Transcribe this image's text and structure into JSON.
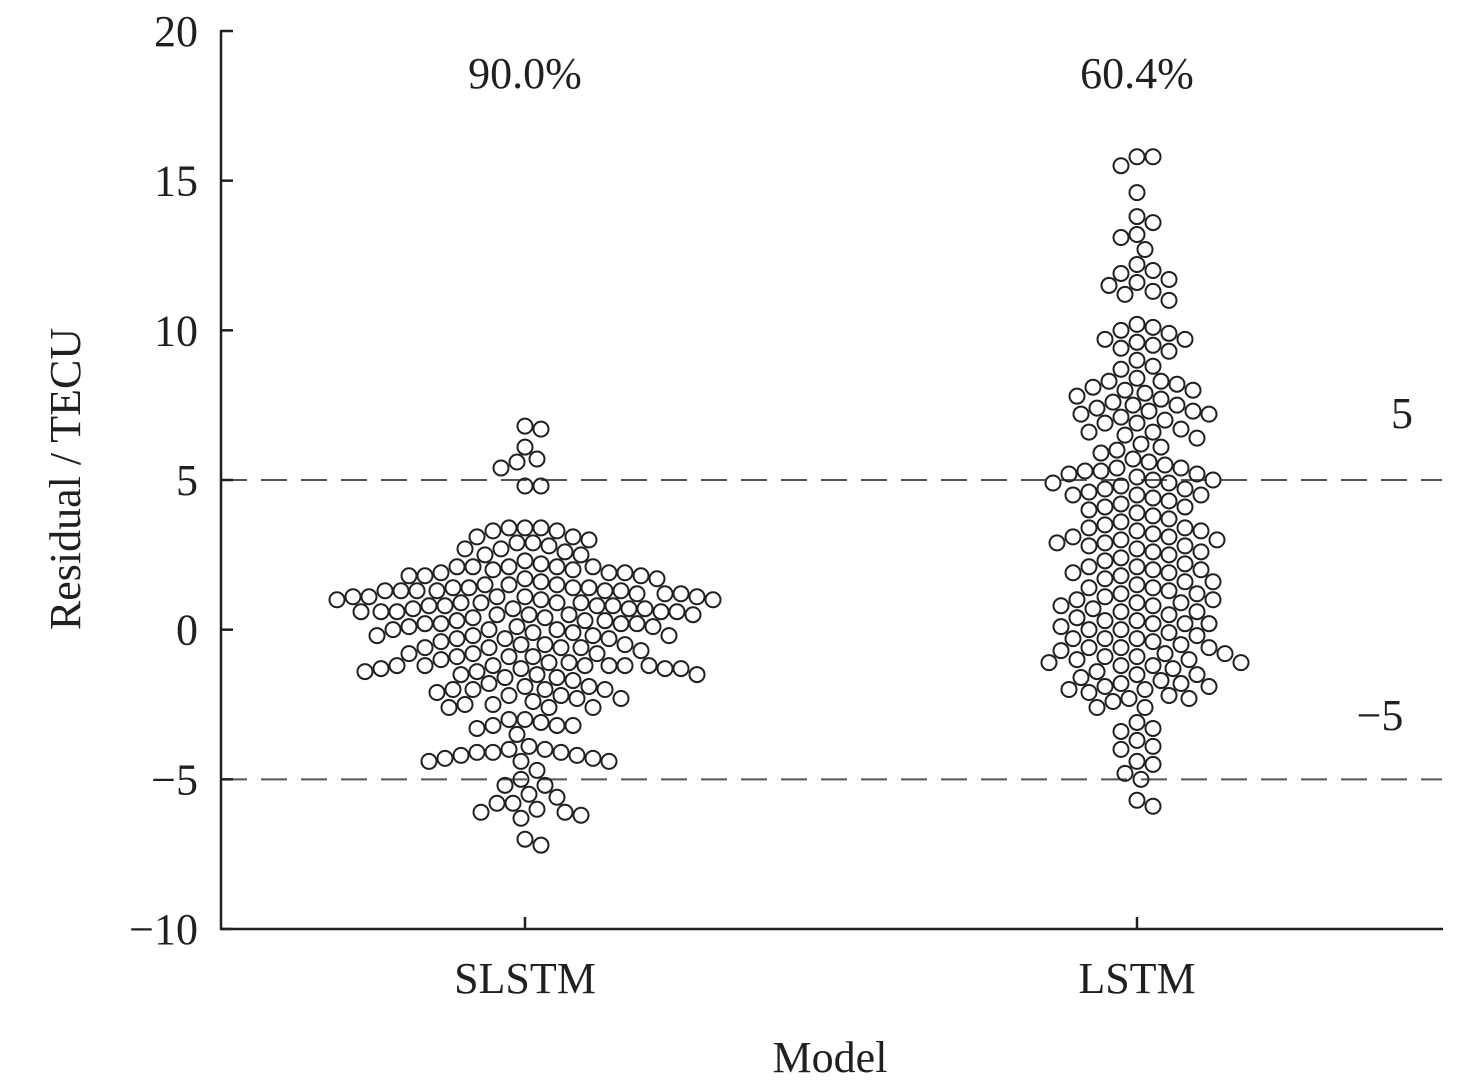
{
  "chart_data": {
    "type": "scatter",
    "subtype": "beeswarm",
    "xlabel": "Model",
    "ylabel": "Residual / TECU",
    "ylim": [
      -10,
      20
    ],
    "yticks": [
      20,
      15,
      10,
      5,
      0,
      -5,
      -10
    ],
    "ytick_labels": [
      "20",
      "15",
      "10",
      "5",
      "0",
      "−5",
      "−10"
    ],
    "categories": [
      "SLSTM",
      "LSTM"
    ],
    "reference_lines": [
      5,
      -5
    ],
    "reference_labels": [
      "5",
      "−5"
    ],
    "annotations": [
      "90.0%",
      "60.4%"
    ],
    "colors": {
      "marker": "#231f20",
      "dash": "#555555",
      "axis": "#231f20"
    },
    "series": [
      {
        "name": "SLSTM",
        "annotation": "90.0%",
        "values": [
          0.1,
          0.2,
          1.0,
          1.1,
          1.3,
          1.5,
          1.7,
          -0.3,
          -0.6,
          0.7,
          0.0,
          0.6,
          -1.1,
          0.6,
          -0.1,
          1.3,
          2.1,
          1.3,
          0.9,
          1.7,
          1.4,
          -1.2,
          -1.4,
          -2.1,
          -2.5,
          0.3,
          2.0,
          2.1,
          1.9,
          0.7,
          0.6,
          -0.1,
          0.4,
          -1.0,
          -1.2,
          1.4,
          0.9,
          0.8,
          -0.6,
          -1.5,
          -1.7,
          -2.6,
          -3.0,
          -3.1,
          2.7,
          3.1,
          0.2,
          0.1,
          -0.9,
          -0.7,
          -1.2,
          -1.8,
          -1.3,
          -4.3,
          -4.4,
          -4.7,
          1.1,
          1.2,
          0.6,
          0.9,
          2.1,
          2.9,
          -1.3,
          -1.6,
          -1.9,
          -2.3,
          1.4,
          1.3,
          0.8,
          0.5,
          -0.2,
          -1.4,
          -1.6,
          -2.2,
          3.4,
          3.0,
          2.6,
          1.8,
          -0.2,
          -2.6,
          -2.6,
          -4.1,
          -5.5,
          -5.8,
          -6.2,
          -6.0,
          2.1,
          1.0,
          0.8,
          0.7,
          -3.5,
          2.9,
          3.4,
          6.1,
          6.7,
          5.7,
          4.8,
          0.2,
          -0.3,
          -0.5,
          -2.0,
          -2.3,
          -4.1,
          -4.2,
          -6.1,
          -6.3,
          -7.0,
          1.8,
          1.5,
          6.8,
          5.6,
          5.4,
          4.8,
          -0.8,
          -3.0,
          -4.3,
          -5.0,
          -5.2,
          -7.2,
          -5.8,
          0.0,
          0.4,
          0.7,
          3.4,
          2.1,
          -0.8,
          -1.3,
          -2.0,
          -4.2,
          -4.4,
          -6.1,
          0.5,
          0.9,
          3.3,
          3.1,
          2.5,
          1.3,
          0.5,
          -1.5,
          -2.4,
          -3.3,
          -3.2,
          -4.0,
          -4.1,
          -4.4,
          -5.2,
          -5.6,
          -1.9,
          -3.2,
          -3.2,
          -3.9,
          -4.0,
          3.3,
          1.9,
          1.6,
          0.3,
          -0.6,
          -0.9,
          -1.2,
          2.8,
          2.5,
          2.2,
          2.0,
          1.4,
          1.0,
          0.1,
          -0.5,
          -1.2,
          -2.0,
          0.8,
          2.7,
          0.5,
          -2.5,
          -2.2,
          -2.0,
          -0.2,
          -0.4,
          -0.3,
          -0.8,
          -1.1,
          -1.5,
          2.3,
          1.9,
          1.8,
          1.3,
          1.1,
          1.2,
          -0.6,
          -0.9,
          -1.3,
          -1.2,
          0.3,
          1.5,
          1.1,
          1.1,
          0.2,
          0.0,
          -0.2,
          -1.2,
          1.2,
          0.6,
          -0.5
        ]
      },
      {
        "name": "LSTM",
        "annotation": "60.4%",
        "values": [
          15.8,
          15.8,
          15.5,
          14.6,
          13.8,
          13.6,
          13.2,
          13.1,
          12.7,
          12.2,
          12.0,
          11.9,
          11.7,
          11.6,
          11.5,
          11.3,
          11.2,
          11.0,
          10.2,
          10.1,
          10.0,
          9.9,
          9.7,
          9.7,
          9.6,
          9.5,
          9.4,
          9.3,
          9.0,
          8.8,
          8.7,
          8.4,
          8.3,
          8.2,
          8.1,
          8.0,
          7.9,
          7.8,
          7.7,
          7.6,
          7.5,
          7.4,
          7.3,
          7.2,
          7.2,
          7.1,
          7.0,
          6.9,
          6.7,
          6.6,
          6.5,
          6.4,
          6.2,
          6.0,
          5.9,
          5.7,
          5.6,
          5.5,
          5.4,
          5.3,
          5.2,
          5.1,
          5.0,
          5.0,
          4.9,
          4.8,
          4.7,
          4.5,
          4.5,
          4.4,
          4.2,
          4.1,
          4.0,
          3.9,
          3.8,
          3.5,
          3.4,
          3.3,
          3.2,
          3.1,
          3.0,
          2.9,
          2.8,
          2.7,
          2.6,
          2.5,
          2.2,
          2.1,
          2.0,
          1.9,
          1.8,
          1.7,
          1.6,
          1.5,
          1.4,
          1.3,
          1.2,
          1.1,
          1.0,
          0.9,
          0.8,
          0.7,
          0.6,
          0.5,
          0.4,
          0.3,
          0.2,
          0.1,
          0.0,
          -0.1,
          -0.2,
          -0.3,
          -0.4,
          -0.5,
          -0.6,
          -0.7,
          -0.8,
          -0.9,
          -1.0,
          -1.1,
          -1.2,
          -1.3,
          -1.4,
          -1.5,
          -1.6,
          -1.7,
          -1.8,
          -1.9,
          -2.0,
          -2.1,
          -2.2,
          -2.3,
          -2.4,
          -2.6,
          -2.6,
          -3.1,
          -3.3,
          -3.4,
          -3.7,
          -3.9,
          -4.0,
          -4.4,
          -4.5,
          -4.8,
          -5.0,
          -5.7,
          -5.9,
          7.3,
          6.9,
          5.3,
          4.9,
          4.6,
          4.3,
          3.7,
          3.4,
          3.1,
          2.9,
          2.8,
          2.3,
          2.0,
          1.6,
          1.2,
          0.9,
          0.6,
          0.3,
          0.0,
          -0.3,
          -0.6,
          -0.9,
          -1.2,
          -1.5,
          -1.8,
          -2.0,
          -2.3,
          -1.1,
          -0.8,
          -0.3,
          0.2,
          0.8,
          1.4,
          2.1,
          2.6,
          3.0,
          3.6,
          4.1,
          4.7,
          5.4,
          6.1,
          6.6,
          8.0,
          8.3,
          7.5,
          3.3,
          2.4,
          1.0,
          0.2,
          -1.0,
          -1.9,
          -0.6,
          1.9,
          4.5,
          5.2
        ]
      }
    ]
  }
}
